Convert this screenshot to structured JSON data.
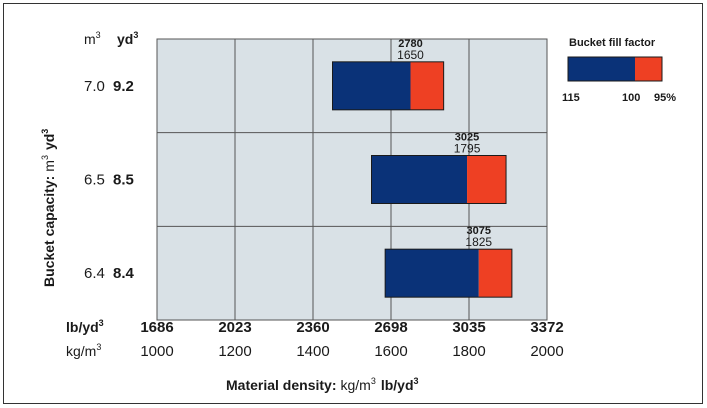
{
  "chart_data": {
    "type": "bar",
    "orientation": "horizontal-range",
    "title": "",
    "xlabel": {
      "prefix": "Material density:",
      "metric_unit_base": "kg/m",
      "metric_unit_exp": "3",
      "imperial_unit_base": "lb/yd",
      "imperial_unit_exp": "3"
    },
    "ylabel": {
      "prefix": "Bucket capacity:",
      "metric_unit_base": "m",
      "metric_unit_exp": "3",
      "imperial_unit_base": "yd",
      "imperial_unit_exp": "3"
    },
    "y_header": {
      "metric_base": "m",
      "metric_exp": "3",
      "imperial_base": "yd",
      "imperial_exp": "3"
    },
    "x_axis_unit_labels": {
      "imperial_base": "lb/yd",
      "imperial_exp": "3",
      "metric_base": "kg/m",
      "metric_exp": "3"
    },
    "xlim": [
      1000,
      2000
    ],
    "x_ticks_kg_m3": [
      "1000",
      "1200",
      "1400",
      "1600",
      "1800",
      "2000"
    ],
    "x_ticks_lb_yd3": [
      "1686",
      "2023",
      "2360",
      "2698",
      "3035",
      "3372"
    ],
    "grid": true,
    "series": [
      {
        "name_prefix": "Bucket fill factor",
        "segments": [
          "115",
          "100",
          "95%"
        ]
      }
    ],
    "rows": [
      {
        "capacity_m3": "7.0",
        "capacity_yd3": "9.2",
        "fill_115_kg_m3": 1450,
        "fill_100_kg_m3": 1650,
        "fill_95_kg_m3": 1735,
        "label_lb": "2780",
        "label_kg": "1650"
      },
      {
        "capacity_m3": "6.5",
        "capacity_yd3": "8.5",
        "fill_115_kg_m3": 1550,
        "fill_100_kg_m3": 1795,
        "fill_95_kg_m3": 1895,
        "label_lb": "3025",
        "label_kg": "1795"
      },
      {
        "capacity_m3": "6.4",
        "capacity_yd3": "8.4",
        "fill_115_kg_m3": 1585,
        "fill_100_kg_m3": 1825,
        "fill_95_kg_m3": 1910,
        "label_lb": "3075",
        "label_kg": "1825"
      }
    ],
    "legend": {
      "title": "Bucket fill factor",
      "labels": [
        "115",
        "100",
        "95%"
      ],
      "placement": "top-right"
    },
    "colors": {
      "plot_bg": "#d9e1e6",
      "grid": "#555555",
      "fill_115": "#0a3278",
      "fill_95": "#ee4023",
      "bar_border": "#1a1a1a"
    }
  }
}
